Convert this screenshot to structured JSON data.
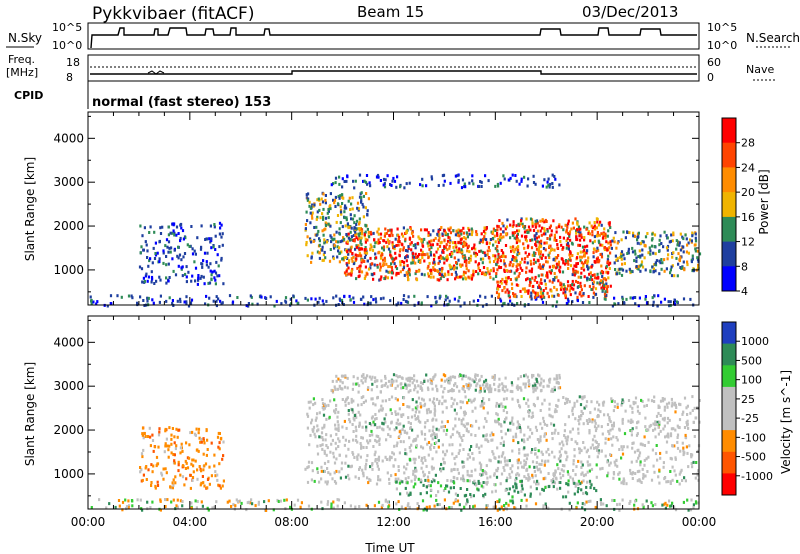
{
  "header": {
    "station": "Pykkvibaer (fitACF)",
    "beam": "Beam 15",
    "date": "03/Dec/2013"
  },
  "status_panel": {
    "nsky_label": "N.Sky",
    "nsky_ticks": [
      "10^5",
      "10^0"
    ],
    "nsearch_label": "N.Search",
    "nsearch_ticks": [
      "10^5",
      "10^0"
    ],
    "freq_label_top": "Freq.",
    "freq_label_bottom": "[MHz]",
    "freq_ticks": [
      "18",
      "8"
    ],
    "nave_label": "Nave",
    "nave_ticks": [
      "60",
      "0"
    ],
    "cpid_label": "CPID",
    "cpid_text": "normal (fast stereo) 153"
  },
  "chart_data": [
    {
      "type": "heatmap",
      "panel": "power",
      "ylabel": "Slant Range [km]",
      "yticks": [
        1000,
        2000,
        3000,
        4000
      ],
      "ylim": [
        200,
        4600
      ],
      "xlim": [
        0,
        24
      ],
      "xticks": [
        "00:00",
        "04:00",
        "08:00",
        "12:00",
        "16:00",
        "20:00",
        "00:00"
      ],
      "colorbar": {
        "label": "Power [dB]",
        "ticks": [
          "28",
          "24",
          "20",
          "16",
          "12",
          "8",
          "4"
        ],
        "colors": [
          "#ff0000",
          "#ff4400",
          "#ff8c00",
          "#f0b400",
          "#2e8b57",
          "#1f3f9f",
          "#0000ff"
        ]
      },
      "regions": [
        {
          "t": [
            0,
            24
          ],
          "r": [
            200,
            450
          ],
          "level": "low"
        },
        {
          "t": [
            2.0,
            5.3
          ],
          "r": [
            700,
            2100
          ],
          "level": "low"
        },
        {
          "t": [
            8.5,
            11.0
          ],
          "r": [
            1200,
            2800
          ],
          "level": "mid"
        },
        {
          "t": [
            10.0,
            16.0
          ],
          "r": [
            800,
            2000
          ],
          "level": "high"
        },
        {
          "t": [
            16.0,
            20.5
          ],
          "r": [
            400,
            2200
          ],
          "level": "high"
        },
        {
          "t": [
            20.5,
            24.0
          ],
          "r": [
            900,
            1900
          ],
          "level": "mid"
        },
        {
          "t": [
            9.5,
            18.5
          ],
          "r": [
            2900,
            3200
          ],
          "level": "low"
        }
      ]
    },
    {
      "type": "heatmap",
      "panel": "velocity",
      "ylabel": "Slant Range [km]",
      "yticks": [
        1000,
        2000,
        3000,
        4000
      ],
      "ylim": [
        200,
        4600
      ],
      "xlim": [
        0,
        24
      ],
      "xticks": [
        "00:00",
        "04:00",
        "08:00",
        "12:00",
        "16:00",
        "20:00",
        "00:00"
      ],
      "xlabel": "Time UT",
      "colorbar": {
        "label": "Velocity [m s^-1]",
        "ticks": [
          "1000",
          "500",
          "100",
          "25",
          "-25",
          "-100",
          "-500",
          "-1000"
        ],
        "colors": [
          "#1f3fbf",
          "#2e8b57",
          "#33cc33",
          "#c0c0c0",
          "#c0c0c0",
          "#ff8c00",
          "#ff5500",
          "#ff0000"
        ]
      },
      "regions": [
        {
          "t": [
            0,
            24
          ],
          "r": [
            200,
            450
          ],
          "level": "mixed"
        },
        {
          "t": [
            2.0,
            5.3
          ],
          "r": [
            700,
            2100
          ],
          "level": "negative"
        },
        {
          "t": [
            8.5,
            24.0
          ],
          "r": [
            800,
            2800
          ],
          "level": "near-zero"
        },
        {
          "t": [
            12.0,
            20.0
          ],
          "r": [
            500,
            900
          ],
          "level": "positive"
        },
        {
          "t": [
            9.5,
            18.5
          ],
          "r": [
            2900,
            3300
          ],
          "level": "near-zero"
        }
      ]
    }
  ]
}
